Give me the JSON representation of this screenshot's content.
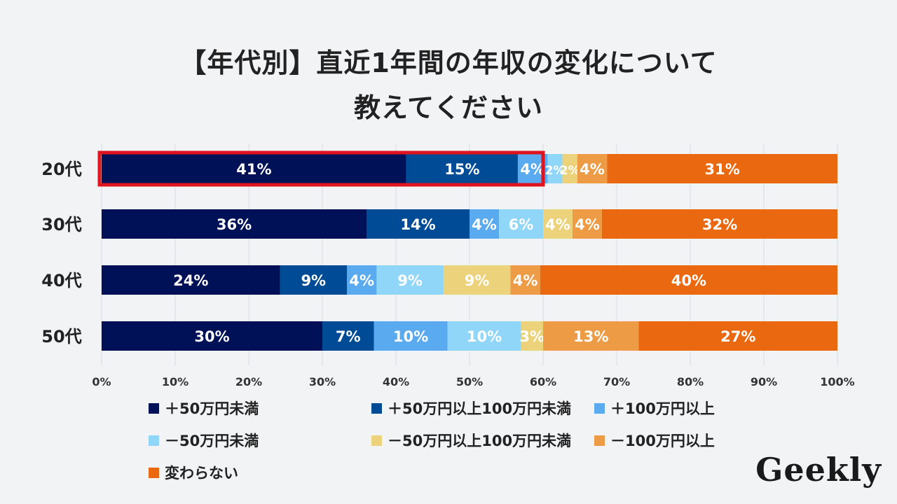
{
  "title": {
    "line1": "【年代別】直近1年間の年収の変化について",
    "line2": "教えてください"
  },
  "logo": "Geekly",
  "chart_data": {
    "type": "bar",
    "orientation": "horizontal-stacked-100",
    "categories": [
      "20代",
      "30代",
      "40代",
      "50代"
    ],
    "series": [
      {
        "name": "＋50万円未満",
        "color": "#001158",
        "values": [
          41,
          36,
          24,
          30
        ],
        "labels": [
          "41%",
          "36%",
          "24%",
          "30%"
        ]
      },
      {
        "name": "＋50万円以上100万円未満",
        "color": "#004b95",
        "values": [
          15,
          14,
          9,
          7
        ],
        "labels": [
          "15%",
          "14%",
          "9%",
          "7%"
        ]
      },
      {
        "name": "＋100万円以上",
        "color": "#5aaaf0",
        "values": [
          4,
          4,
          4,
          10
        ],
        "labels": [
          "4%",
          "4%",
          "4%",
          "10%"
        ]
      },
      {
        "name": "－50万円未満",
        "color": "#8fd6f8",
        "values": [
          2,
          6,
          9,
          10
        ],
        "labels": [
          "2%",
          "6%",
          "9%",
          "10%"
        ]
      },
      {
        "name": "－50万円以上100万円未満",
        "color": "#ecd27a",
        "values": [
          2,
          4,
          9,
          3
        ],
        "labels": [
          "2%",
          "4%",
          "9%",
          "3%"
        ]
      },
      {
        "name": "－100万円以上",
        "color": "#ed9c45",
        "values": [
          4,
          4,
          4,
          13
        ],
        "labels": [
          "4%",
          "4%",
          "4%",
          "13%"
        ]
      },
      {
        "name": "変わらない",
        "color": "#e96810",
        "values": [
          31,
          32,
          40,
          27
        ],
        "labels": [
          "31%",
          "32%",
          "40%",
          "27%"
        ]
      }
    ],
    "xlim": [
      0,
      100
    ],
    "xticks": [
      "0%",
      "10%",
      "20%",
      "30%",
      "40%",
      "50%",
      "60%",
      "70%",
      "80%",
      "90%",
      "100%"
    ],
    "grid": true,
    "highlight": {
      "category": "20代",
      "color": "#e0141e",
      "range": [
        0,
        60
      ]
    }
  }
}
